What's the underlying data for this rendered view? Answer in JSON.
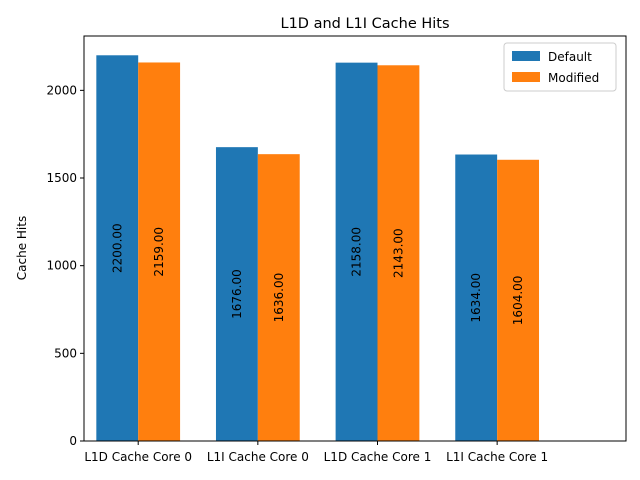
{
  "chart_data": {
    "type": "bar",
    "title": "L1D and L1I Cache Hits",
    "xlabel": "",
    "ylabel": "Cache Hits",
    "categories": [
      "L1D Cache Core 0",
      "L1I Cache Core 0",
      "L1D Cache Core 1",
      "L1I Cache Core 1"
    ],
    "series": [
      {
        "name": "Default",
        "color": "#1f77b4",
        "values": [
          2200,
          1676,
          2158,
          1634
        ],
        "labels": [
          "2200.00",
          "1676.00",
          "2158.00",
          "1634.00"
        ]
      },
      {
        "name": "Modified",
        "color": "#ff7f0e",
        "values": [
          2159,
          1636,
          2143,
          1604
        ],
        "labels": [
          "2159.00",
          "1636.00",
          "2143.00",
          "1604.00"
        ]
      }
    ],
    "ylim": [
      0,
      2310
    ],
    "yticks": [
      0,
      500,
      1000,
      1500,
      2000
    ],
    "grid": false,
    "legend": "top-right"
  }
}
